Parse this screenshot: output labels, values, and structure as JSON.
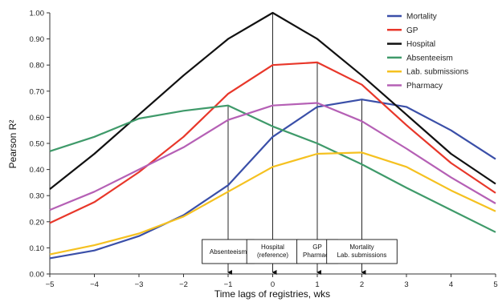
{
  "chart_data": {
    "type": "line",
    "xlabel": "Time lags of registries, wks",
    "ylabel": "Pearson R²",
    "xlim": [
      -5,
      5
    ],
    "ylim": [
      0,
      1
    ],
    "x_ticks": [
      "−5",
      "−4",
      "−3",
      "−2",
      "−1",
      "0",
      "1",
      "2",
      "3",
      "4",
      "5"
    ],
    "y_ticks": [
      "0.00",
      "0.10",
      "0.20",
      "0.30",
      "0.40",
      "0.50",
      "0.60",
      "0.70",
      "0.80",
      "0.90",
      "1.00"
    ],
    "grid": false,
    "legend_position": "top-right",
    "x": [
      -5,
      -4,
      -3,
      -2,
      -1,
      0,
      1,
      2,
      3,
      4,
      5
    ],
    "series": [
      {
        "name": "Mortality",
        "color": "#3a4fa8",
        "values": [
          0.06,
          0.09,
          0.145,
          0.225,
          0.34,
          0.525,
          0.64,
          0.668,
          0.64,
          0.55,
          0.44
        ]
      },
      {
        "name": "GP",
        "color": "#e8372a",
        "values": [
          0.195,
          0.275,
          0.39,
          0.525,
          0.69,
          0.8,
          0.81,
          0.725,
          0.57,
          0.425,
          0.31
        ]
      },
      {
        "name": "Hospital",
        "color": "#111111",
        "values": [
          0.325,
          0.46,
          0.61,
          0.76,
          0.9,
          1.0,
          0.9,
          0.76,
          0.61,
          0.46,
          0.345
        ]
      },
      {
        "name": "Absenteeism",
        "color": "#3f9a6a",
        "values": [
          0.47,
          0.525,
          0.595,
          0.625,
          0.645,
          0.565,
          0.5,
          0.42,
          0.33,
          0.245,
          0.16
        ]
      },
      {
        "name": "Lab. submissions",
        "color": "#f5c120",
        "values": [
          0.075,
          0.11,
          0.155,
          0.22,
          0.315,
          0.41,
          0.46,
          0.465,
          0.41,
          0.32,
          0.24
        ]
      },
      {
        "name": "Pharmacy",
        "color": "#b560b5",
        "values": [
          0.245,
          0.315,
          0.4,
          0.485,
          0.59,
          0.645,
          0.655,
          0.585,
          0.48,
          0.37,
          0.27
        ]
      }
    ],
    "annotations": [
      {
        "lines": [
          "Absenteeism"
        ],
        "x": -1,
        "y": 0.645
      },
      {
        "lines": [
          "Hospital",
          "(reference)"
        ],
        "x": 0,
        "y": 1.0
      },
      {
        "lines": [
          "GP",
          "Pharmacy"
        ],
        "x": 1,
        "y": 0.81
      },
      {
        "lines": [
          "Mortality",
          "Lab. submissions"
        ],
        "x": 2,
        "y": 0.668
      }
    ]
  }
}
